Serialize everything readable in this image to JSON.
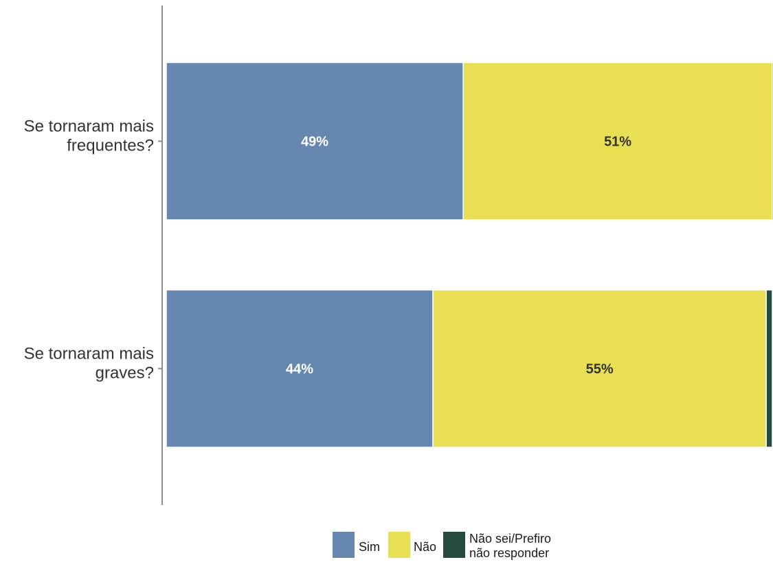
{
  "chart_data": {
    "type": "bar",
    "orientation": "horizontal",
    "stacked": true,
    "percent": true,
    "categories": [
      "Se tornaram mais frequentes?",
      "Se tornaram mais graves?"
    ],
    "category_lines": [
      [
        "Se tornaram mais",
        "frequentes?"
      ],
      [
        "Se tornaram mais",
        "graves?"
      ]
    ],
    "series": [
      {
        "name": "Sim",
        "values": [
          49,
          44
        ],
        "labels": [
          "49%",
          "44%"
        ],
        "color": "#6688b0",
        "label_color": "#ffffff"
      },
      {
        "name": "Não",
        "values": [
          51,
          55
        ],
        "labels": [
          "51%",
          "55%"
        ],
        "color": "#e8df52",
        "label_color": "#333333"
      },
      {
        "name": "Não sei/Prefiro não responder",
        "values": [
          0.3,
          0.3
        ],
        "labels": [
          "",
          ""
        ],
        "color": "#264a3c",
        "label_color": "#ffffff"
      }
    ],
    "xlim": [
      0,
      100
    ],
    "grid": false,
    "legend_position": "bottom",
    "legend_lines": [
      [
        "Sim"
      ],
      [
        "Não"
      ],
      [
        "Não sei/Prefiro",
        "não responder"
      ]
    ]
  }
}
